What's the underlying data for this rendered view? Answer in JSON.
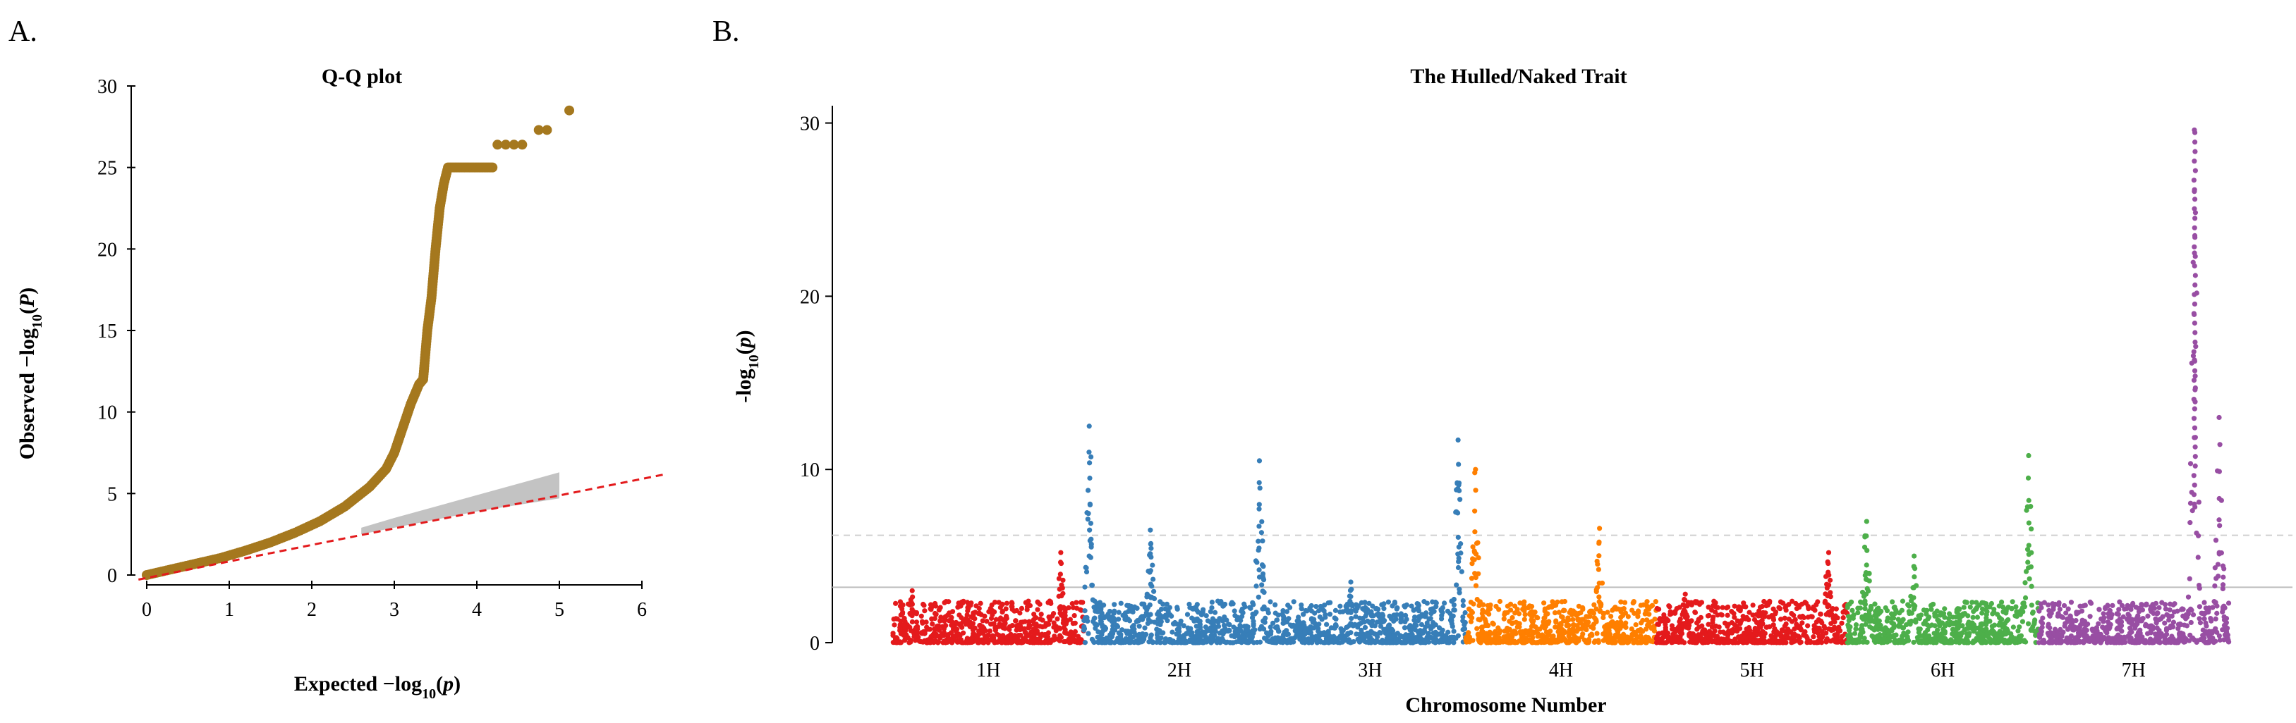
{
  "panels": {
    "a_label": "A.",
    "b_label": "B."
  },
  "chart_data": [
    {
      "type": "scatter",
      "id": "qq",
      "title": "Q-Q plot",
      "xlabel": "Expected −log10(p)",
      "ylabel": "Observed −log10(P)",
      "xlim": [
        0,
        6
      ],
      "ylim": [
        0,
        30
      ],
      "x_ticks": [
        0,
        1,
        2,
        3,
        4,
        5,
        6
      ],
      "y_ticks": [
        0,
        5,
        10,
        15,
        20,
        25,
        30
      ],
      "point_color": "#A5781E",
      "reference_line_color": "#E31A1C",
      "band_color": "#B8B8B8",
      "observed_curve": [
        [
          0.0,
          0.0
        ],
        [
          0.3,
          0.35
        ],
        [
          0.6,
          0.7
        ],
        [
          0.9,
          1.05
        ],
        [
          1.2,
          1.5
        ],
        [
          1.5,
          2.0
        ],
        [
          1.8,
          2.6
        ],
        [
          2.1,
          3.3
        ],
        [
          2.4,
          4.2
        ],
        [
          2.7,
          5.4
        ],
        [
          2.9,
          6.5
        ],
        [
          3.0,
          7.5
        ],
        [
          3.1,
          9.0
        ],
        [
          3.2,
          10.5
        ],
        [
          3.3,
          11.7
        ],
        [
          3.35,
          12.0
        ],
        [
          3.4,
          15.0
        ],
        [
          3.45,
          17.0
        ],
        [
          3.5,
          20.0
        ],
        [
          3.55,
          22.5
        ],
        [
          3.6,
          24.0
        ],
        [
          3.65,
          25.0
        ]
      ],
      "plateau": {
        "x_start": 3.65,
        "x_end": 4.2,
        "y": 25.0
      },
      "outlier_points": [
        [
          4.25,
          26.4
        ],
        [
          4.35,
          26.4
        ],
        [
          4.45,
          26.4
        ],
        [
          4.55,
          26.4
        ],
        [
          4.75,
          27.3
        ],
        [
          4.85,
          27.3
        ],
        [
          5.12,
          28.5
        ]
      ],
      "band": {
        "x": [
          2.6,
          3.0,
          3.5,
          4.0,
          4.5,
          5.0
        ],
        "upper": [
          2.9,
          3.5,
          4.2,
          4.9,
          5.6,
          6.3
        ],
        "lower": [
          2.5,
          2.9,
          3.4,
          3.9,
          4.3,
          4.7
        ]
      }
    },
    {
      "type": "scatter",
      "id": "manhattan",
      "title": "The Hulled/Naked Trait",
      "xlabel": "Chromosome Number",
      "ylabel": "-log10(p)",
      "ylim": [
        0,
        31
      ],
      "y_ticks": [
        0,
        10,
        20,
        30
      ],
      "suggestive_line": 3.2,
      "genomewide_line": 6.2,
      "chromosomes": [
        {
          "name": "1H",
          "color": "#E41A1C",
          "peaks": [
            {
              "pos": 0.88,
              "height": 5.2
            },
            {
              "pos": 0.1,
              "height": 3.0
            }
          ]
        },
        {
          "name": "2H",
          "color": "#377EB8",
          "peaks": [
            {
              "pos": 0.03,
              "height": 12.5
            },
            {
              "pos": 0.35,
              "height": 6.5
            },
            {
              "pos": 0.92,
              "height": 10.5
            }
          ]
        },
        {
          "name": "3H",
          "color": "#377EB8",
          "peaks": [
            {
              "pos": 0.96,
              "height": 11.7
            },
            {
              "pos": 0.4,
              "height": 3.5
            }
          ]
        },
        {
          "name": "4H",
          "color": "#FF7F00",
          "peaks": [
            {
              "pos": 0.05,
              "height": 10.0
            },
            {
              "pos": 0.7,
              "height": 6.6
            }
          ]
        },
        {
          "name": "5H",
          "color": "#E41A1C",
          "peaks": [
            {
              "pos": 0.9,
              "height": 5.2
            },
            {
              "pos": 0.15,
              "height": 2.8
            }
          ]
        },
        {
          "name": "6H",
          "color": "#4DAF4A",
          "peaks": [
            {
              "pos": 0.1,
              "height": 7.0
            },
            {
              "pos": 0.35,
              "height": 5.0
            },
            {
              "pos": 0.95,
              "height": 10.8
            }
          ]
        },
        {
          "name": "7H",
          "color": "#984EA3",
          "peaks": [
            {
              "pos": 0.82,
              "height": 29.6
            },
            {
              "pos": 0.95,
              "height": 13.0
            }
          ]
        }
      ]
    }
  ]
}
